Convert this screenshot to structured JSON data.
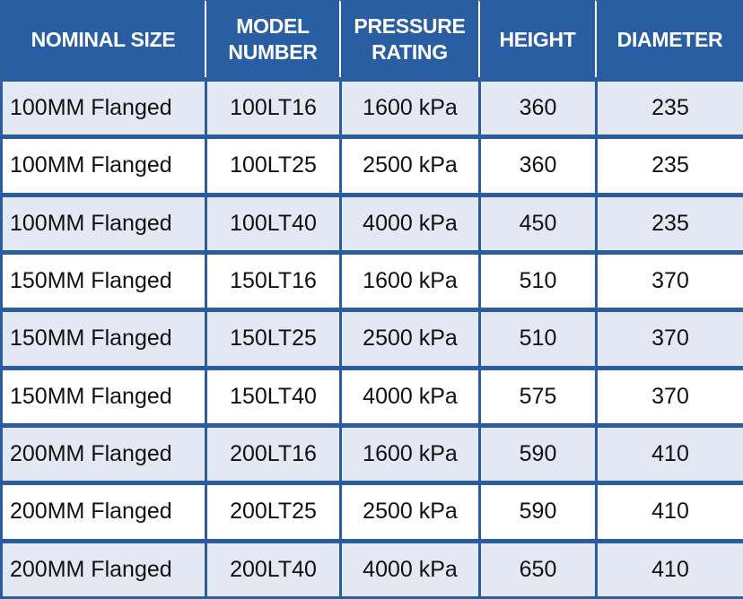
{
  "table": {
    "headers": {
      "nominal_size": "NOMINAL SIZE",
      "model_number_line1": "MODEL",
      "model_number_line2": "NUMBER",
      "pressure_rating_line1": "PRESSURE",
      "pressure_rating_line2": "RATING",
      "height": "HEIGHT",
      "diameter": "DIAMETER"
    },
    "rows": [
      {
        "size": "100MM Flanged",
        "model": "100LT16",
        "pressure": "1600 kPa",
        "height": "360",
        "diameter": "235"
      },
      {
        "size": "100MM Flanged",
        "model": "100LT25",
        "pressure": "2500 kPa",
        "height": "360",
        "diameter": "235"
      },
      {
        "size": "100MM Flanged",
        "model": "100LT40",
        "pressure": "4000 kPa",
        "height": "450",
        "diameter": "235"
      },
      {
        "size": "150MM Flanged",
        "model": "150LT16",
        "pressure": "1600 kPa",
        "height": "510",
        "diameter": "370"
      },
      {
        "size": "150MM Flanged",
        "model": "150LT25",
        "pressure": "2500 kPa",
        "height": "510",
        "diameter": "370"
      },
      {
        "size": "150MM Flanged",
        "model": "150LT40",
        "pressure": "4000 kPa",
        "height": "575",
        "diameter": "370"
      },
      {
        "size": "200MM Flanged",
        "model": "200LT16",
        "pressure": "1600 kPa",
        "height": "590",
        "diameter": "410"
      },
      {
        "size": "200MM Flanged",
        "model": "200LT25",
        "pressure": "2500 kPa",
        "height": "590",
        "diameter": "410"
      },
      {
        "size": "200MM Flanged",
        "model": "200LT40",
        "pressure": "4000 kPa",
        "height": "650",
        "diameter": "410"
      }
    ]
  },
  "colors": {
    "header_bg": "#2a5ea3",
    "grid": "#2a5c9e",
    "row_shaded": "#e3e8f2",
    "row_plain": "#ffffff"
  }
}
